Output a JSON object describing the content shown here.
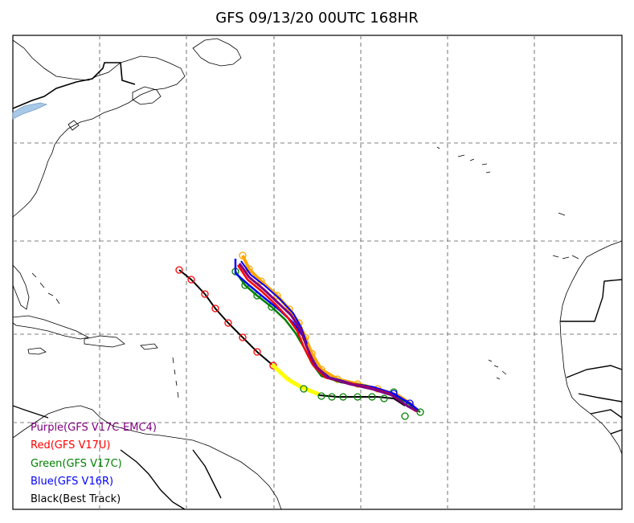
{
  "title": "GFS 09/13/20 00UTC 168HR",
  "colors": {
    "purple": "#800080",
    "red": "#ff0000",
    "green": "#008000",
    "blue": "#0000ff",
    "black": "#000000",
    "orange": "#ffa500",
    "yellow": "#ffff00",
    "grid": "#808080",
    "lake": "#a8c8e8"
  },
  "legend": [
    {
      "label": "Purple(GFS V17C-EMC4)",
      "color": "#800080"
    },
    {
      "label": "Red(GFS V17U)",
      "color": "#ff0000"
    },
    {
      "label": "Green(GFS V17C)",
      "color": "#008000"
    },
    {
      "label": "Blue(GFS V16R)",
      "color": "#0000ff"
    },
    {
      "label": "Black(Best Track)",
      "color": "#000000"
    }
  ]
}
